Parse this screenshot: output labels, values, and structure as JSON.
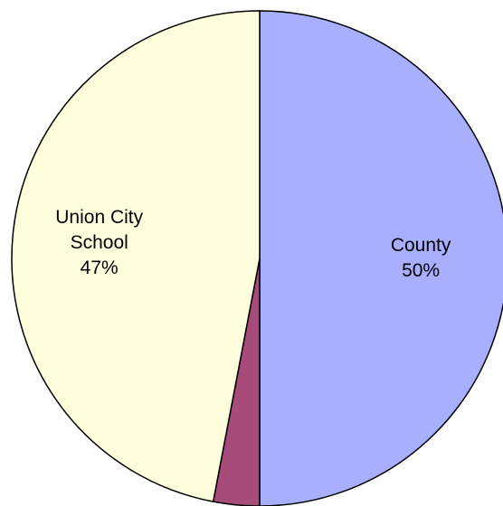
{
  "chart_data": {
    "type": "pie",
    "categories": [
      "County",
      null,
      "Union City School"
    ],
    "values": [
      50,
      3,
      47
    ],
    "value_labels": [
      "50%",
      null,
      "47%"
    ],
    "colors": [
      "#a9afff",
      "#a64b7a",
      "#ffffdd"
    ]
  }
}
